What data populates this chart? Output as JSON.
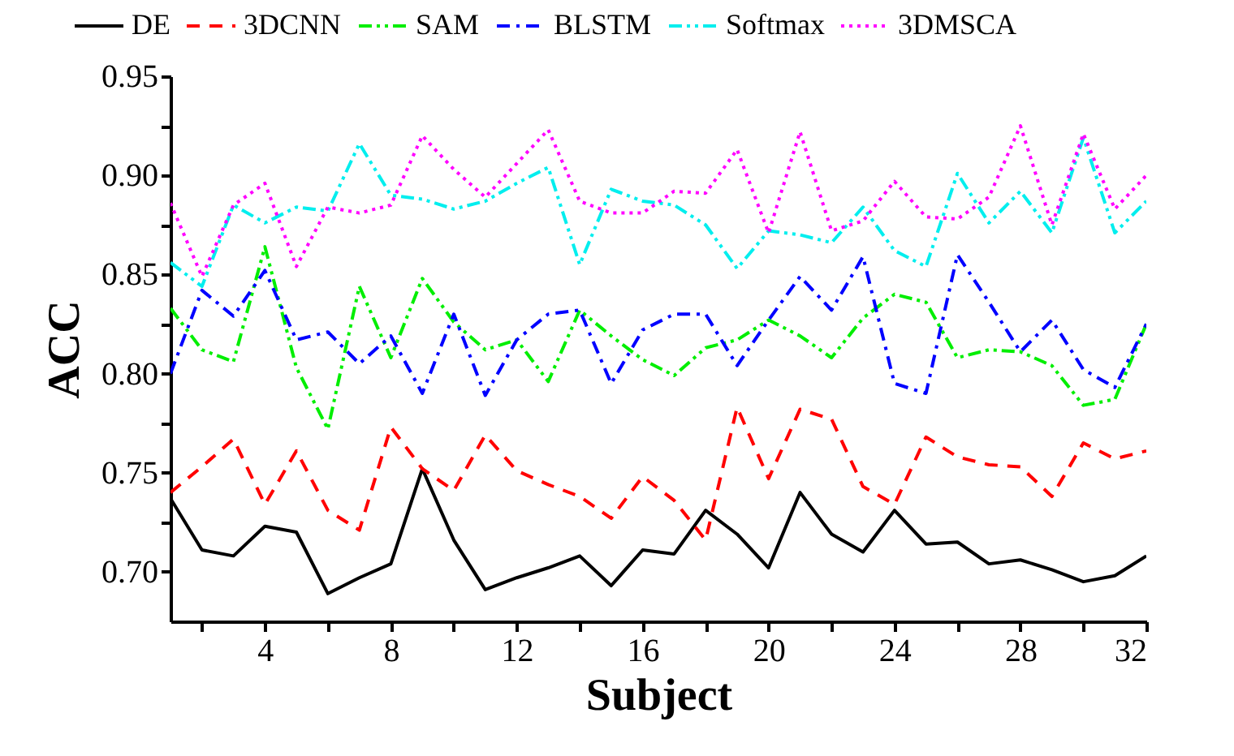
{
  "chart_data": {
    "type": "line",
    "xlabel": "Subject",
    "ylabel": "ACC",
    "x": [
      1,
      2,
      3,
      4,
      5,
      6,
      7,
      8,
      9,
      10,
      11,
      12,
      13,
      14,
      15,
      16,
      17,
      18,
      19,
      20,
      21,
      22,
      23,
      24,
      25,
      26,
      27,
      28,
      29,
      30,
      31,
      32
    ],
    "xlim": [
      1,
      32
    ],
    "xticks": [
      {
        "value": 2,
        "label": null
      },
      4,
      {
        "value": 6,
        "label": null
      },
      8,
      {
        "value": 10,
        "label": null
      },
      12,
      {
        "value": 14,
        "label": null
      },
      16,
      {
        "value": 18,
        "label": null
      },
      20,
      {
        "value": 22,
        "label": null
      },
      24,
      {
        "value": 26,
        "label": null
      },
      28,
      {
        "value": 30,
        "label": null
      },
      32
    ],
    "ylim": [
      0.675,
      0.95
    ],
    "yticks": [
      {
        "value": 0.7,
        "label": "0.70"
      },
      {
        "value": 0.725,
        "label": null
      },
      {
        "value": 0.75,
        "label": "0.75"
      },
      {
        "value": 0.775,
        "label": null
      },
      {
        "value": 0.8,
        "label": "0.80"
      },
      {
        "value": 0.825,
        "label": null
      },
      {
        "value": 0.85,
        "label": "0.85"
      },
      {
        "value": 0.875,
        "label": null
      },
      {
        "value": 0.9,
        "label": "0.90"
      },
      {
        "value": 0.925,
        "label": null
      },
      {
        "value": 0.95,
        "label": "0.95"
      }
    ],
    "grid": false,
    "legend": "top",
    "marker": "none",
    "series": [
      {
        "name": "DE",
        "color": "#000000",
        "line_style": "solid",
        "values": [
          0.737,
          0.711,
          0.708,
          0.723,
          0.72,
          0.689,
          0.697,
          0.704,
          0.752,
          0.716,
          0.691,
          0.697,
          0.702,
          0.708,
          0.693,
          0.711,
          0.709,
          0.731,
          0.719,
          0.702,
          0.74,
          0.719,
          0.71,
          0.731,
          0.714,
          0.715,
          0.704,
          0.706,
          0.701,
          0.695,
          0.698,
          0.708
        ]
      },
      {
        "name": "3DCNN",
        "color": "#ff0000",
        "line_style": "dashed",
        "values": [
          0.74,
          0.753,
          0.767,
          0.734,
          0.761,
          0.731,
          0.721,
          0.773,
          0.752,
          0.741,
          0.769,
          0.751,
          0.744,
          0.738,
          0.727,
          0.748,
          0.736,
          0.716,
          0.783,
          0.747,
          0.782,
          0.777,
          0.743,
          0.734,
          0.768,
          0.758,
          0.754,
          0.753,
          0.738,
          0.765,
          0.757,
          0.761
        ]
      },
      {
        "name": "SAM",
        "color": "#00ee00",
        "line_style": "dashdotdot",
        "values": [
          0.833,
          0.812,
          0.806,
          0.864,
          0.803,
          0.772,
          0.844,
          0.808,
          0.848,
          0.826,
          0.812,
          0.817,
          0.796,
          0.832,
          0.819,
          0.807,
          0.799,
          0.813,
          0.817,
          0.827,
          0.819,
          0.808,
          0.828,
          0.84,
          0.836,
          0.808,
          0.812,
          0.811,
          0.804,
          0.784,
          0.787,
          0.825
        ]
      },
      {
        "name": "BLSTM",
        "color": "#0000ff",
        "line_style": "dashdot",
        "values": [
          0.8,
          0.842,
          0.829,
          0.852,
          0.817,
          0.821,
          0.805,
          0.819,
          0.79,
          0.83,
          0.789,
          0.817,
          0.83,
          0.832,
          0.795,
          0.822,
          0.83,
          0.83,
          0.804,
          0.827,
          0.849,
          0.832,
          0.859,
          0.795,
          0.79,
          0.86,
          0.836,
          0.811,
          0.827,
          0.802,
          0.793,
          0.825
        ]
      },
      {
        "name": "Softmax",
        "color": "#00eeee",
        "line_style": "dashdotdot",
        "values": [
          0.856,
          0.844,
          0.885,
          0.876,
          0.884,
          0.882,
          0.916,
          0.89,
          0.888,
          0.883,
          0.887,
          0.896,
          0.904,
          0.855,
          0.893,
          0.887,
          0.885,
          0.875,
          0.853,
          0.872,
          0.87,
          0.866,
          0.884,
          0.862,
          0.854,
          0.901,
          0.876,
          0.892,
          0.871,
          0.919,
          0.871,
          0.887
        ]
      },
      {
        "name": "3DMSCA",
        "color": "#ff00ff",
        "line_style": "dotted",
        "values": [
          0.886,
          0.849,
          0.885,
          0.896,
          0.854,
          0.884,
          0.881,
          0.885,
          0.92,
          0.903,
          0.889,
          0.906,
          0.923,
          0.887,
          0.881,
          0.881,
          0.892,
          0.891,
          0.913,
          0.871,
          0.922,
          0.872,
          0.877,
          0.897,
          0.879,
          0.878,
          0.889,
          0.925,
          0.875,
          0.921,
          0.883,
          0.9
        ]
      }
    ]
  }
}
